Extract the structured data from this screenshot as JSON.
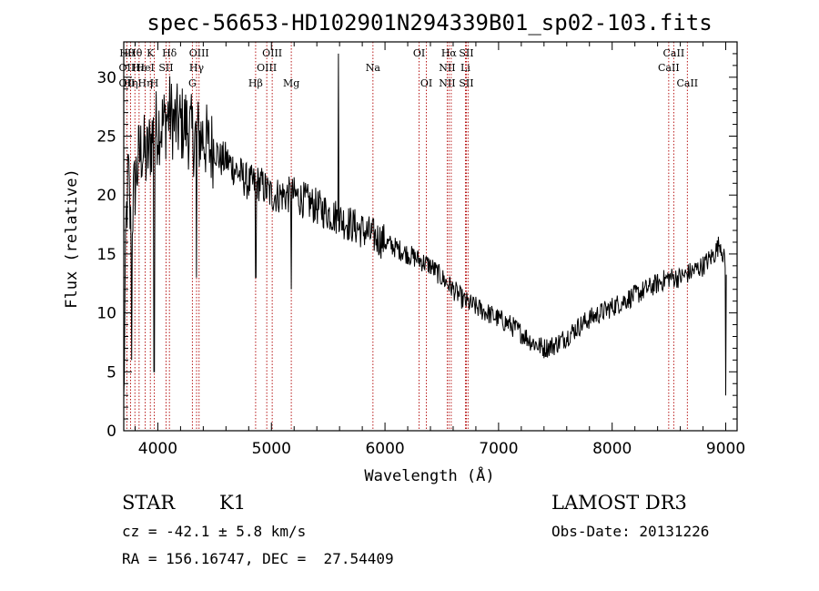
{
  "chart_data": {
    "type": "line",
    "title": "spec-56653-HD102901N294339B01_sp02-103.fits",
    "xlabel": "Wavelength (Å)",
    "ylabel": "Flux (relative)",
    "xlim": [
      3700,
      9100
    ],
    "ylim": [
      0,
      33
    ],
    "x_ticks": [
      4000,
      5000,
      6000,
      7000,
      8000,
      9000
    ],
    "y_ticks": [
      0,
      5,
      10,
      15,
      20,
      25,
      30
    ],
    "grid": false,
    "series": [
      {
        "name": "spectrum",
        "x": [
          3700,
          3720,
          3740,
          3760,
          3780,
          3800,
          3830,
          3860,
          3900,
          3950,
          4000,
          4050,
          4100,
          4150,
          4200,
          4250,
          4300,
          4350,
          4400,
          4450,
          4500,
          4550,
          4600,
          4700,
          4800,
          4900,
          5000,
          5100,
          5200,
          5300,
          5400,
          5500,
          5600,
          5700,
          5800,
          5900,
          6000,
          6100,
          6200,
          6300,
          6400,
          6500,
          6600,
          6700,
          6800,
          6900,
          7000,
          7100,
          7200,
          7300,
          7400,
          7500,
          7600,
          7700,
          7800,
          7900,
          8000,
          8100,
          8200,
          8300,
          8400,
          8500,
          8600,
          8700,
          8800,
          8900,
          8950,
          9000
        ],
        "values": [
          2,
          17,
          22,
          17,
          19,
          21,
          23,
          24,
          23,
          25,
          26,
          26,
          27,
          26,
          26,
          26,
          25,
          25,
          25,
          24,
          24,
          23,
          23,
          22,
          21,
          21,
          20,
          20,
          20,
          19.5,
          19,
          18.5,
          18,
          17.5,
          17,
          16.5,
          16,
          15.5,
          15,
          14.5,
          14,
          13,
          12,
          11,
          10.5,
          10,
          9.5,
          9,
          8.3,
          7.5,
          7,
          7.3,
          8,
          8.8,
          9.5,
          10,
          10.5,
          11,
          11.5,
          12,
          12.5,
          13,
          13,
          13.5,
          14,
          15,
          16,
          14
        ]
      }
    ],
    "spikes": [
      {
        "x": 3770,
        "value": 6
      },
      {
        "x": 3968,
        "value": 5
      },
      {
        "x": 4340,
        "value": 13
      },
      {
        "x": 4861,
        "value": 13
      },
      {
        "x": 5175,
        "value": 12
      },
      {
        "x": 5590,
        "value": 32
      },
      {
        "x": 9000,
        "value": 3
      }
    ],
    "lines": [
      {
        "x": 3727,
        "labels": [
          "Hθ",
          "OII",
          "OII"
        ]
      },
      {
        "x": 3760,
        "labels": [
          "",
          "",
          "Hη"
        ]
      },
      {
        "x": 3798,
        "labels": [
          "Hθ",
          "",
          ""
        ]
      },
      {
        "x": 3835,
        "labels": [
          "",
          "Hε",
          ""
        ]
      },
      {
        "x": 3889,
        "labels": [
          "",
          "HeI",
          "Hη"
        ]
      },
      {
        "x": 3934,
        "labels": [
          "K",
          "",
          ""
        ]
      },
      {
        "x": 3969,
        "labels": [
          "",
          "",
          "H"
        ]
      },
      {
        "x": 4072,
        "labels": [
          "",
          "SII",
          ""
        ]
      },
      {
        "x": 4102,
        "labels": [
          "Hδ",
          "",
          ""
        ]
      },
      {
        "x": 4304,
        "labels": [
          "",
          "",
          "G"
        ]
      },
      {
        "x": 4341,
        "labels": [
          "",
          "Hγ",
          ""
        ]
      },
      {
        "x": 4363,
        "labels": [
          "OIII",
          "",
          ""
        ]
      },
      {
        "x": 4861,
        "labels": [
          "",
          "",
          "Hβ"
        ]
      },
      {
        "x": 4959,
        "labels": [
          "",
          "OIII",
          ""
        ]
      },
      {
        "x": 5007,
        "labels": [
          "OIII",
          "",
          ""
        ]
      },
      {
        "x": 5175,
        "labels": [
          "",
          "",
          "Mg"
        ]
      },
      {
        "x": 5894,
        "labels": [
          "",
          "Na",
          ""
        ]
      },
      {
        "x": 6300,
        "labels": [
          "OI",
          "",
          ""
        ]
      },
      {
        "x": 6364,
        "labels": [
          "",
          "",
          "OI"
        ]
      },
      {
        "x": 6548,
        "labels": [
          "",
          "NII",
          "NII"
        ]
      },
      {
        "x": 6563,
        "labels": [
          "Hα",
          "",
          ""
        ]
      },
      {
        "x": 6583,
        "labels": [
          "",
          "",
          ""
        ]
      },
      {
        "x": 6708,
        "labels": [
          "",
          "Li",
          ""
        ]
      },
      {
        "x": 6716,
        "labels": [
          "SII",
          "",
          "SII"
        ]
      },
      {
        "x": 6731,
        "labels": [
          "",
          "",
          ""
        ]
      },
      {
        "x": 8498,
        "labels": [
          "",
          "CaII",
          ""
        ]
      },
      {
        "x": 8542,
        "labels": [
          "CaII",
          "",
          ""
        ]
      },
      {
        "x": 8662,
        "labels": [
          "",
          "",
          "CaII"
        ]
      }
    ]
  },
  "info": {
    "class": "STAR",
    "subclass": "K1",
    "survey": "LAMOST DR3",
    "cz": "cz = -42.1 ± 5.8 km/s",
    "obs_date": "Obs-Date: 20131226",
    "coords": "RA = 156.16747, DEC =  27.54409"
  }
}
